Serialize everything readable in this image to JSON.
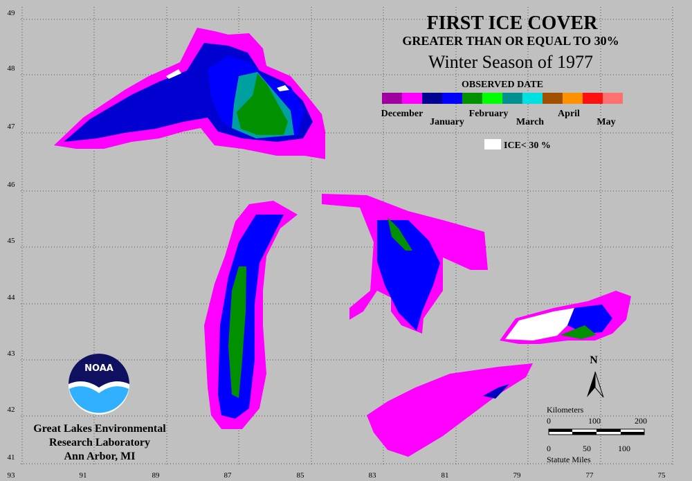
{
  "title": "FIRST ICE COVER",
  "subtitle": "GREATER THAN OR EQUAL TO 30%",
  "season": "Winter Season of 1977",
  "legend": {
    "title": "OBSERVED DATE",
    "months": [
      "December",
      "January",
      "February",
      "March",
      "April",
      "May"
    ],
    "ice_note": "ICE< 30 %"
  },
  "logo": "NOAA",
  "lab": [
    "Great Lakes Environmental",
    "Research Laboratory",
    "Ann Arbor, MI"
  ],
  "north": "N",
  "scale": {
    "km_label": "Kilometers",
    "km_ticks": [
      0,
      100,
      200
    ],
    "mi_label": "Statute Miles",
    "mi_ticks": [
      0,
      50,
      100
    ]
  },
  "grid": {
    "latitudes": [
      49,
      48,
      47,
      46,
      45,
      44,
      43,
      42,
      41
    ],
    "longitudes": [
      93,
      91,
      89,
      87,
      85,
      83,
      81,
      79,
      77,
      75
    ]
  }
}
